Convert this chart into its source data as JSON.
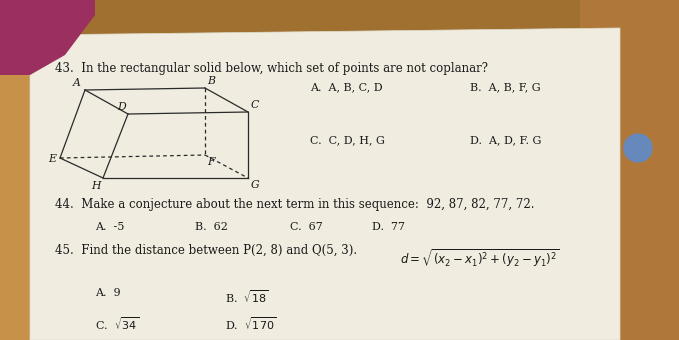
{
  "bg_wood_color": "#c8914a",
  "paper_color": "#f0ece0",
  "pink_accent_color": "#9b3060",
  "text_color": "#1a1a1a",
  "box_line_color": "#2a2a2a",
  "circle_color": "#6688bb",
  "q43_text": "43.  In the rectangular solid below, which set of points are not coplanar?",
  "q44_text": "44.  Make a conjecture about the next term in this sequence:  92, 87, 82, 77, 72.",
  "q45_text": "45.  Find the distance between P(2, 8) and Q(5, 3).",
  "ans43": [
    "A.  A, B, C, D",
    "B.  A, B, F, G",
    "C.  C, D, H, G",
    "D.  A, D, F. G"
  ],
  "ans44": [
    "A.  -5",
    "B.  62",
    "C.  67",
    "D.  77"
  ],
  "ans45_row1": [
    "A.  9",
    "B."
  ],
  "ans45_row2": [
    "C.",
    "D."
  ],
  "font_size_q": 8.5,
  "font_size_ans": 8.0,
  "font_size_label": 7.5
}
